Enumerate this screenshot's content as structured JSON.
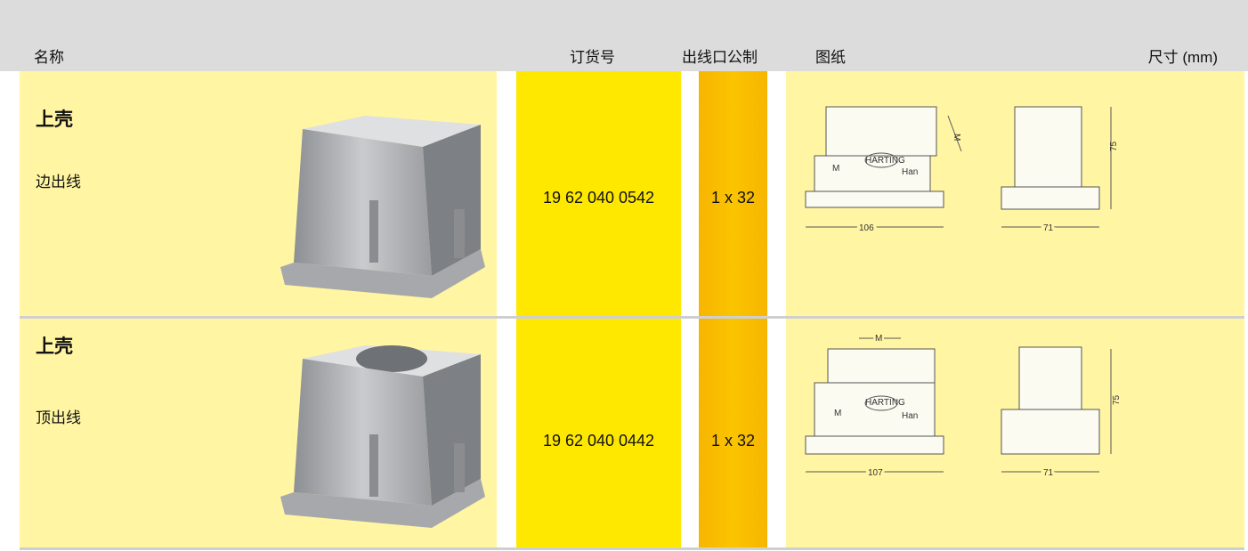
{
  "header": {
    "columns": [
      "名称",
      "订货号",
      "出线口公制",
      "图纸",
      "尺寸 (mm)"
    ]
  },
  "rows": [
    {
      "name": "上壳",
      "variant": "边出线",
      "order_no": "19 62 040 0542",
      "outlet": "1 x 32",
      "drawing": {
        "thread": "M",
        "brand": "HARTING",
        "series": "Han",
        "front_width": "106",
        "side_width": "71",
        "height": "75"
      }
    },
    {
      "name": "上壳",
      "variant": "顶出线",
      "order_no": "19 62 040 0442",
      "outlet": "1 x 32",
      "drawing": {
        "thread": "M",
        "brand": "HARTING",
        "series": "Han",
        "front_width": "107",
        "side_width": "71",
        "height": "75"
      }
    }
  ]
}
